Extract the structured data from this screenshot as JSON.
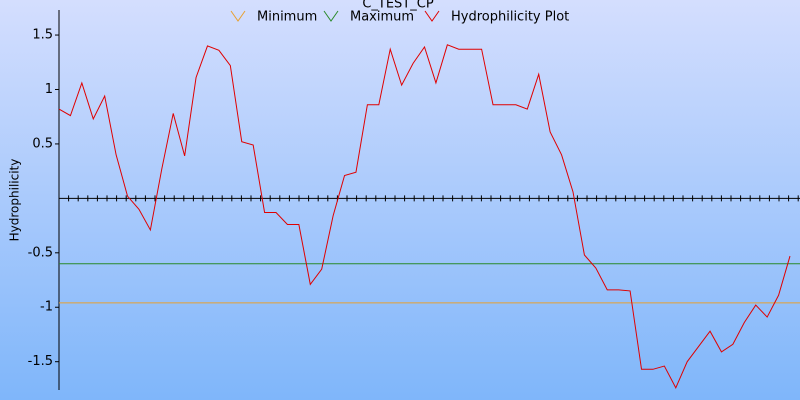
{
  "chart_data": {
    "type": "line",
    "title": "C_TEST_CP",
    "ylabel": "Hydrophilicity",
    "ylim": [
      -1.76,
      1.73
    ],
    "yticks": [
      1.5,
      1,
      0.5,
      -0.5,
      -1,
      -1.5
    ],
    "series": [
      {
        "name": "Minimum",
        "color": "#e8a030",
        "value": -0.96
      },
      {
        "name": "Maximum",
        "color": "#2a8a2a",
        "value": -0.6
      },
      {
        "name": "Hydrophilicity Plot",
        "color": "#e00000",
        "values": [
          0.82,
          0.76,
          1.06,
          0.73,
          0.94,
          0.4,
          0.02,
          -0.1,
          -0.29,
          0.27,
          0.78,
          0.39,
          1.11,
          1.4,
          1.36,
          1.22,
          0.52,
          0.49,
          -0.13,
          -0.13,
          -0.24,
          -0.24,
          -0.79,
          -0.65,
          -0.16,
          0.21,
          0.24,
          0.86,
          0.86,
          1.37,
          1.04,
          1.24,
          1.39,
          1.06,
          1.41,
          1.37,
          1.37,
          1.37,
          0.86,
          0.86,
          0.86,
          0.82,
          1.14,
          0.61,
          0.4,
          0.06,
          -0.52,
          -0.64,
          -0.84,
          -0.84,
          -0.85,
          -1.57,
          -1.57,
          -1.54,
          -1.74,
          -1.5,
          -1.36,
          -1.22,
          -1.41,
          -1.34,
          -1.14,
          -0.98,
          -1.09,
          -0.89,
          -0.53
        ]
      }
    ]
  }
}
